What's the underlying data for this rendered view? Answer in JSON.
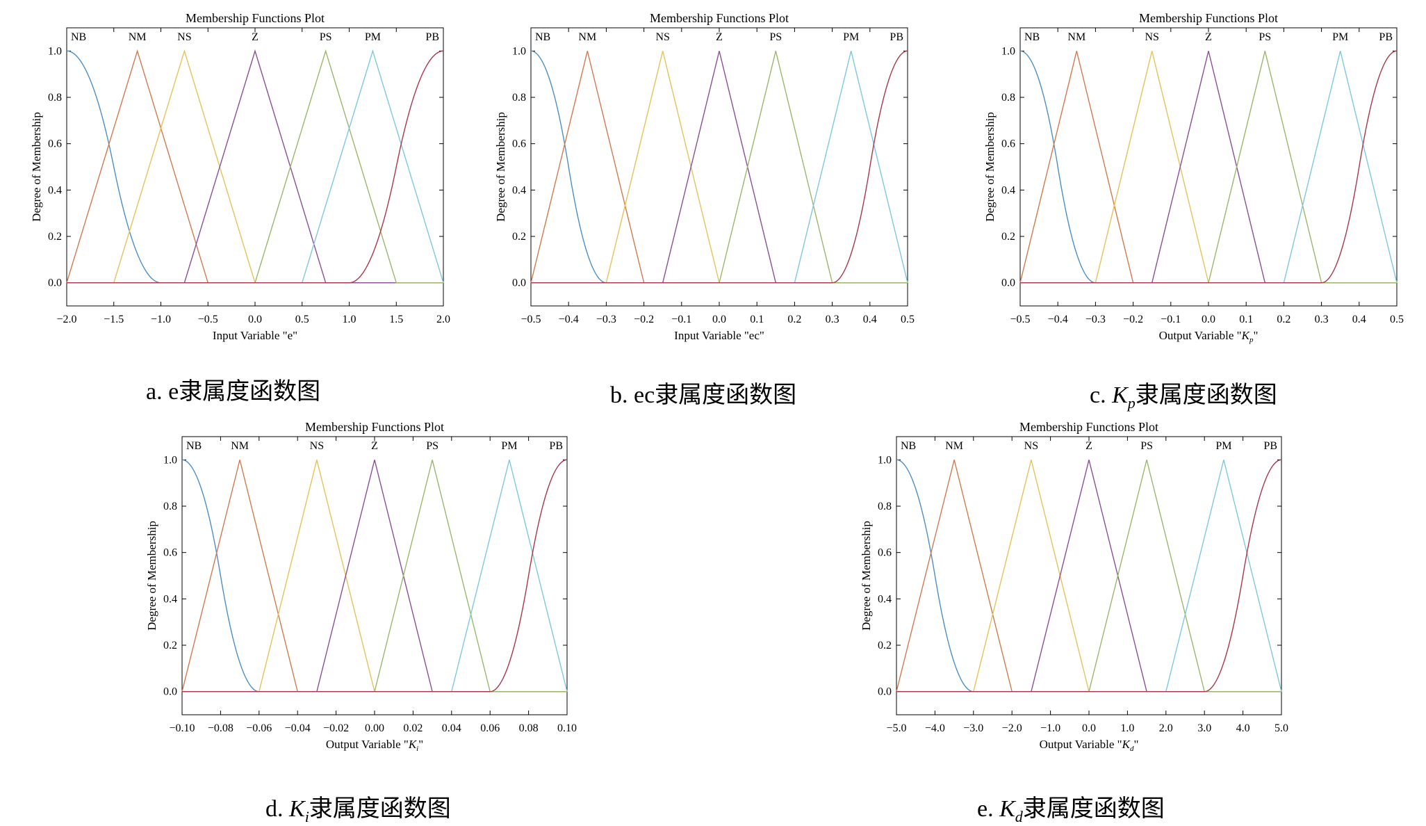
{
  "chart_data": [
    {
      "type": "line",
      "title": "Membership Functions Plot",
      "xlabel": "Input Variable \"e\"",
      "xlabel_var": "",
      "xlabel_sub": "",
      "ylabel": "Degree of Membership",
      "xlim": [
        -2.0,
        2.0
      ],
      "ylim": [
        -0.1,
        1.1
      ],
      "xticks": [
        -2.0,
        -1.5,
        -1.0,
        -0.5,
        0.0,
        0.5,
        1.0,
        1.5,
        2.0
      ],
      "xtick_labels": [
        "−2.0",
        "−1.5",
        "−1.0",
        "−0.5",
        "0.0",
        "0.5",
        "1.0",
        "1.5",
        "2.0"
      ],
      "yticks": [
        0.0,
        0.2,
        0.4,
        0.6,
        0.8,
        1.0
      ],
      "ytick_labels": [
        "0.0",
        "0.2",
        "0.4",
        "0.6",
        "0.8",
        "1.0"
      ],
      "series": [
        {
          "name": "NB",
          "shape": "zmf",
          "params": [
            -2.0,
            -1.0
          ],
          "color": "#4a8fc8"
        },
        {
          "name": "NM",
          "shape": "trimf",
          "params": [
            -2.0,
            -1.25,
            -0.5
          ],
          "color": "#d07a50"
        },
        {
          "name": "NS",
          "shape": "trimf",
          "params": [
            -1.5,
            -0.75,
            0.0
          ],
          "color": "#e3c35a"
        },
        {
          "name": "Z",
          "shape": "trimf",
          "params": [
            -0.75,
            0.0,
            0.75
          ],
          "color": "#8b4f96"
        },
        {
          "name": "PS",
          "shape": "trimf",
          "params": [
            0.0,
            0.75,
            1.5
          ],
          "color": "#9cb66b"
        },
        {
          "name": "PM",
          "shape": "trimf",
          "params": [
            0.5,
            1.25,
            2.0
          ],
          "color": "#7dc8e0"
        },
        {
          "name": "PB",
          "shape": "smf",
          "params": [
            1.0,
            2.0
          ],
          "color": "#a8364d"
        }
      ],
      "caption_prefix": "a. e",
      "caption_var": "",
      "caption_sub": "",
      "caption_suffix": "隶属度函数图"
    },
    {
      "type": "line",
      "title": "Membership Functions Plot",
      "xlabel": "Input Variable \"ec\"",
      "xlabel_var": "",
      "xlabel_sub": "",
      "ylabel": "Degree of Membership",
      "xlim": [
        -0.5,
        0.5
      ],
      "ylim": [
        -0.1,
        1.1
      ],
      "xticks": [
        -0.5,
        -0.4,
        -0.3,
        -0.2,
        -0.1,
        0.0,
        0.1,
        0.2,
        0.3,
        0.4,
        0.5
      ],
      "xtick_labels": [
        "−0.5",
        "−0.4",
        "−0.3",
        "−0.2",
        "−0.1",
        "0.0",
        "0.1",
        "0.2",
        "0.3",
        "0.4",
        "0.5"
      ],
      "yticks": [
        0.0,
        0.2,
        0.4,
        0.6,
        0.8,
        1.0
      ],
      "ytick_labels": [
        "0.0",
        "0.2",
        "0.4",
        "0.6",
        "0.8",
        "1.0"
      ],
      "series": [
        {
          "name": "NB",
          "shape": "zmf",
          "params": [
            -0.5,
            -0.3
          ],
          "color": "#4a8fc8"
        },
        {
          "name": "NM",
          "shape": "trimf",
          "params": [
            -0.5,
            -0.35,
            -0.2
          ],
          "color": "#d07a50"
        },
        {
          "name": "NS",
          "shape": "trimf",
          "params": [
            -0.3,
            -0.15,
            0.0
          ],
          "color": "#e3c35a"
        },
        {
          "name": "Z",
          "shape": "trimf",
          "params": [
            -0.15,
            0.0,
            0.15
          ],
          "color": "#8b4f96"
        },
        {
          "name": "PS",
          "shape": "trimf",
          "params": [
            0.0,
            0.15,
            0.3
          ],
          "color": "#9cb66b"
        },
        {
          "name": "PM",
          "shape": "trimf",
          "params": [
            0.2,
            0.35,
            0.5
          ],
          "color": "#7dc8e0"
        },
        {
          "name": "PB",
          "shape": "smf",
          "params": [
            0.3,
            0.5
          ],
          "color": "#a8364d"
        }
      ],
      "caption_prefix": "b. ec",
      "caption_var": "",
      "caption_sub": "",
      "caption_suffix": "隶属度函数图"
    },
    {
      "type": "line",
      "title": "Membership Functions Plot",
      "xlabel": "Output Variable \"",
      "xlabel_var": "K",
      "xlabel_sub": "p",
      "xlabel_end": "\"",
      "ylabel": "Degree of Membership",
      "xlim": [
        -0.5,
        0.5
      ],
      "ylim": [
        -0.1,
        1.1
      ],
      "xticks": [
        -0.5,
        -0.4,
        -0.3,
        -0.2,
        -0.1,
        0.0,
        0.1,
        0.2,
        0.3,
        0.4,
        0.5
      ],
      "xtick_labels": [
        "−0.5",
        "−0.4",
        "−0.3",
        "−0.2",
        "−0.1",
        "0.0",
        "0.1",
        "0.2",
        "0.3",
        "0.4",
        "0.5"
      ],
      "yticks": [
        0.0,
        0.2,
        0.4,
        0.6,
        0.8,
        1.0
      ],
      "ytick_labels": [
        "0.0",
        "0.2",
        "0.4",
        "0.6",
        "0.8",
        "1.0"
      ],
      "series": [
        {
          "name": "NB",
          "shape": "zmf",
          "params": [
            -0.5,
            -0.3
          ],
          "color": "#4a8fc8"
        },
        {
          "name": "NM",
          "shape": "trimf",
          "params": [
            -0.5,
            -0.35,
            -0.2
          ],
          "color": "#d07a50"
        },
        {
          "name": "NS",
          "shape": "trimf",
          "params": [
            -0.3,
            -0.15,
            0.0
          ],
          "color": "#e3c35a"
        },
        {
          "name": "Z",
          "shape": "trimf",
          "params": [
            -0.15,
            0.0,
            0.15
          ],
          "color": "#8b4f96"
        },
        {
          "name": "PS",
          "shape": "trimf",
          "params": [
            0.0,
            0.15,
            0.3
          ],
          "color": "#9cb66b"
        },
        {
          "name": "PM",
          "shape": "trimf",
          "params": [
            0.2,
            0.35,
            0.5
          ],
          "color": "#7dc8e0"
        },
        {
          "name": "PB",
          "shape": "smf",
          "params": [
            0.3,
            0.5
          ],
          "color": "#a8364d"
        }
      ],
      "caption_prefix": "c.",
      "caption_var": "K",
      "caption_sub": "p",
      "caption_suffix": "隶属度函数图"
    },
    {
      "type": "line",
      "title": "Membership Functions Plot",
      "xlabel": "Output Variable \"",
      "xlabel_var": "K",
      "xlabel_sub": "i",
      "xlabel_end": "\"",
      "ylabel": "Degree of Membership",
      "xlim": [
        -0.1,
        0.1
      ],
      "ylim": [
        -0.1,
        1.1
      ],
      "xticks": [
        -0.1,
        -0.08,
        -0.06,
        -0.04,
        -0.02,
        0.0,
        0.02,
        0.04,
        0.06,
        0.08,
        0.1
      ],
      "xtick_labels": [
        "−0.10",
        "−0.08",
        "−0.06",
        "−0.04",
        "−0.02",
        "0.00",
        "0.02",
        "0.04",
        "0.06",
        "0.08",
        "0.10"
      ],
      "yticks": [
        0.0,
        0.2,
        0.4,
        0.6,
        0.8,
        1.0
      ],
      "ytick_labels": [
        "0.0",
        "0.2",
        "0.4",
        "0.6",
        "0.8",
        "1.0"
      ],
      "series": [
        {
          "name": "NB",
          "shape": "zmf",
          "params": [
            -0.1,
            -0.06
          ],
          "color": "#4a8fc8"
        },
        {
          "name": "NM",
          "shape": "trimf",
          "params": [
            -0.1,
            -0.07,
            -0.04
          ],
          "color": "#d07a50"
        },
        {
          "name": "NS",
          "shape": "trimf",
          "params": [
            -0.06,
            -0.03,
            0.0
          ],
          "color": "#e3c35a"
        },
        {
          "name": "Z",
          "shape": "trimf",
          "params": [
            -0.03,
            0.0,
            0.03
          ],
          "color": "#8b4f96"
        },
        {
          "name": "PS",
          "shape": "trimf",
          "params": [
            0.0,
            0.03,
            0.06
          ],
          "color": "#9cb66b"
        },
        {
          "name": "PM",
          "shape": "trimf",
          "params": [
            0.04,
            0.07,
            0.1
          ],
          "color": "#7dc8e0"
        },
        {
          "name": "PB",
          "shape": "smf",
          "params": [
            0.06,
            0.1
          ],
          "color": "#a8364d"
        }
      ],
      "caption_prefix": "d.",
      "caption_var": "K",
      "caption_sub": "i",
      "caption_suffix": "隶属度函数图"
    },
    {
      "type": "line",
      "title": "Membership Functions Plot",
      "xlabel": "Output Variable \"",
      "xlabel_var": "K",
      "xlabel_sub": "d",
      "xlabel_end": "\"",
      "ylabel": "Degree of Membership",
      "xlim": [
        -5.0,
        5.0
      ],
      "ylim": [
        -0.1,
        1.1
      ],
      "xticks": [
        -5,
        -4,
        -3,
        -2,
        -1,
        0,
        1,
        2,
        3,
        4,
        5
      ],
      "xtick_labels": [
        "−5.0",
        "−4.0",
        "−3.0",
        "−2.0",
        "−1.0",
        "0.0",
        "1.0",
        "2.0",
        "3.0",
        "4.0",
        "5.0"
      ],
      "yticks": [
        0.0,
        0.2,
        0.4,
        0.6,
        0.8,
        1.0
      ],
      "ytick_labels": [
        "0.0",
        "0.2",
        "0.4",
        "0.6",
        "0.8",
        "1.0"
      ],
      "series": [
        {
          "name": "NB",
          "shape": "zmf",
          "params": [
            -5.0,
            -3.0
          ],
          "color": "#4a8fc8"
        },
        {
          "name": "NM",
          "shape": "trimf",
          "params": [
            -5.0,
            -3.5,
            -2.0
          ],
          "color": "#d07a50"
        },
        {
          "name": "NS",
          "shape": "trimf",
          "params": [
            -3.0,
            -1.5,
            0.0
          ],
          "color": "#e3c35a"
        },
        {
          "name": "Z",
          "shape": "trimf",
          "params": [
            -1.5,
            0.0,
            1.5
          ],
          "color": "#8b4f96"
        },
        {
          "name": "PS",
          "shape": "trimf",
          "params": [
            0.0,
            1.5,
            3.0
          ],
          "color": "#9cb66b"
        },
        {
          "name": "PM",
          "shape": "trimf",
          "params": [
            2.0,
            3.5,
            5.0
          ],
          "color": "#7dc8e0"
        },
        {
          "name": "PB",
          "shape": "smf",
          "params": [
            3.0,
            5.0
          ],
          "color": "#a8364d"
        }
      ],
      "caption_prefix": "e.",
      "caption_var": "K",
      "caption_sub": "d",
      "caption_suffix": "隶属度函数图"
    }
  ]
}
